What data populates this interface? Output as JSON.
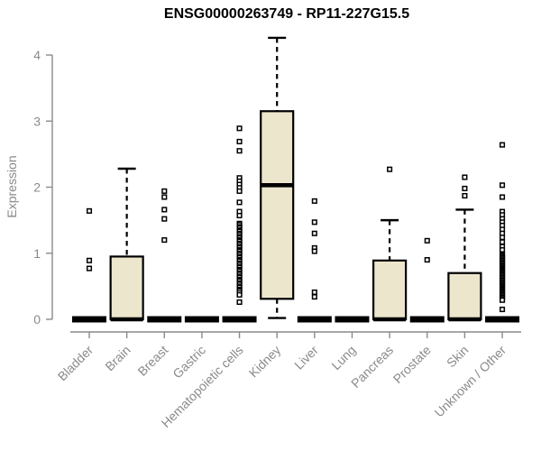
{
  "chart_data": {
    "type": "boxplot",
    "title": "ENSG00000263749 - RP11-227G15.5",
    "xlabel": "",
    "ylabel": "Expression",
    "ylim": [
      0,
      4.3
    ],
    "yticks": [
      0,
      1,
      2,
      3,
      4
    ],
    "grid": false,
    "categories": [
      "Bladder",
      "Brain",
      "Breast",
      "Gastric",
      "Hematopoietic cells",
      "Kidney",
      "Liver",
      "Lung",
      "Pancreas",
      "Prostate",
      "Skin",
      "Unknown / Other"
    ],
    "series": [
      {
        "name": "Bladder",
        "q1": 0,
        "median": 0,
        "q3": 0,
        "whisker_low": 0,
        "whisker_high": 0,
        "outliers": [
          1.64,
          0.89,
          0.77
        ]
      },
      {
        "name": "Brain",
        "q1": 0,
        "median": 0,
        "q3": 0.95,
        "whisker_low": 0,
        "whisker_high": 2.28,
        "outliers": []
      },
      {
        "name": "Breast",
        "q1": 0,
        "median": 0,
        "q3": 0,
        "whisker_low": 0,
        "whisker_high": 0,
        "outliers": [
          1.94,
          1.85,
          1.66,
          1.52,
          1.2
        ]
      },
      {
        "name": "Gastric",
        "q1": 0,
        "median": 0,
        "q3": 0,
        "whisker_low": 0,
        "whisker_high": 0,
        "outliers": []
      },
      {
        "name": "Hematopoietic cells",
        "q1": 0,
        "median": 0,
        "q3": 0,
        "whisker_low": 0,
        "whisker_high": 0,
        "outliers": [
          2.89,
          2.69,
          2.55,
          2.14,
          2.09,
          2.04,
          1.99,
          1.94,
          1.77,
          1.63,
          1.57,
          1.45,
          1.43,
          1.4,
          1.38,
          1.35,
          1.33,
          1.3,
          1.28,
          1.25,
          1.23,
          1.2,
          1.18,
          1.15,
          1.13,
          1.1,
          1.08,
          1.05,
          1.03,
          1.0,
          0.98,
          0.95,
          0.93,
          0.9,
          0.88,
          0.85,
          0.83,
          0.8,
          0.78,
          0.75,
          0.73,
          0.7,
          0.68,
          0.65,
          0.63,
          0.6,
          0.58,
          0.55,
          0.53,
          0.5,
          0.48,
          0.45,
          0.43,
          0.4,
          0.37,
          0.26
        ]
      },
      {
        "name": "Kidney",
        "q1": 0.31,
        "median": 2.03,
        "q3": 3.15,
        "whisker_low": 0.02,
        "whisker_high": 4.26,
        "outliers": []
      },
      {
        "name": "Liver",
        "q1": 0,
        "median": 0,
        "q3": 0,
        "whisker_low": 0,
        "whisker_high": 0,
        "outliers": [
          1.79,
          1.47,
          1.3,
          1.08,
          1.03,
          0.41,
          0.34
        ]
      },
      {
        "name": "Lung",
        "q1": 0,
        "median": 0,
        "q3": 0,
        "whisker_low": 0,
        "whisker_high": 0,
        "outliers": []
      },
      {
        "name": "Pancreas",
        "q1": 0,
        "median": 0,
        "q3": 0.89,
        "whisker_low": 0,
        "whisker_high": 1.5,
        "outliers": [
          2.27
        ]
      },
      {
        "name": "Prostate",
        "q1": 0,
        "median": 0,
        "q3": 0,
        "whisker_low": 0,
        "whisker_high": 0,
        "outliers": [
          1.19,
          0.9
        ]
      },
      {
        "name": "Skin",
        "q1": 0,
        "median": 0,
        "q3": 0.7,
        "whisker_low": 0,
        "whisker_high": 1.66,
        "outliers": [
          2.15,
          1.98,
          1.87
        ]
      },
      {
        "name": "Unknown / Other",
        "q1": 0,
        "median": 0,
        "q3": 0,
        "whisker_low": 0,
        "whisker_high": 0,
        "outliers": [
          2.64,
          2.03,
          1.85,
          1.63,
          1.58,
          1.52,
          1.47,
          1.42,
          1.36,
          1.3,
          1.24,
          1.17,
          1.1,
          1.05,
          0.99,
          0.97,
          0.95,
          0.93,
          0.91,
          0.89,
          0.87,
          0.85,
          0.83,
          0.81,
          0.79,
          0.77,
          0.75,
          0.73,
          0.71,
          0.69,
          0.67,
          0.65,
          0.63,
          0.61,
          0.59,
          0.57,
          0.55,
          0.53,
          0.51,
          0.49,
          0.47,
          0.45,
          0.43,
          0.41,
          0.39,
          0.37,
          0.35,
          0.33,
          0.31,
          0.29,
          0.15
        ]
      }
    ]
  },
  "colors": {
    "box_fill": "#ECE6CC",
    "box_stroke": "#000000",
    "axis": "#8a8a8a",
    "tick_label": "#8a8a8a",
    "title": "#000000",
    "background": "#ffffff"
  }
}
